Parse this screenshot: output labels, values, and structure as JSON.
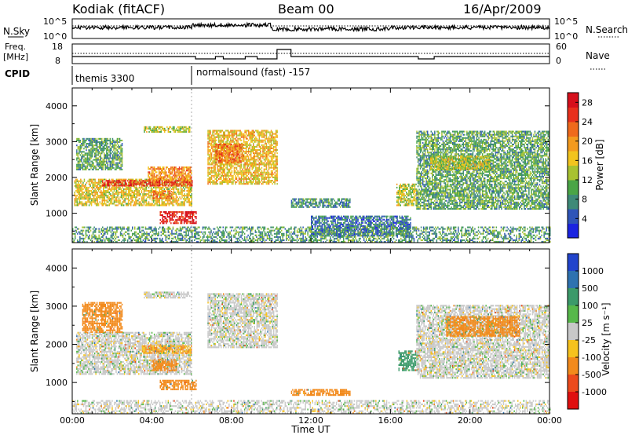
{
  "header": {
    "station": "Kodiak (fitACF)",
    "beam": "Beam 00",
    "date": "16/Apr/2009"
  },
  "top_panels": {
    "nsky_label": "N.Sky",
    "nsky_ticks": [
      "10^5",
      "10^0"
    ],
    "nsearch_label": "N.Search",
    "nsearch_ticks": [
      "10^5",
      "10^0"
    ],
    "freq_label_1": "Freq.",
    "freq_label_2": "[MHz]",
    "freq_ticks": [
      "18",
      "8"
    ],
    "nave_label": "Nave",
    "nave_ticks": [
      "60",
      "0"
    ],
    "cpid_label": "CPID",
    "cpid_segments": [
      {
        "name": "themis 3300",
        "start_hour": 0,
        "end_hour": 6
      },
      {
        "name": "normalsound (fast) -157",
        "start_hour": 6,
        "end_hour": 24
      }
    ]
  },
  "chart_data": [
    {
      "type": "heatmap",
      "parameter": "power",
      "xlabel": "Time UT",
      "ylabel": "Slant Range [km]",
      "xlim": [
        0,
        24
      ],
      "ylim": [
        180,
        4500
      ],
      "y_ticks": [
        "1000",
        "2000",
        "3000",
        "4000"
      ],
      "colorbar": {
        "label": "Power [dB]",
        "ticks": [
          "4",
          "8",
          "12",
          "16",
          "20",
          "24",
          "28"
        ],
        "colors": [
          "#1b24e0",
          "#2f55b8",
          "#3e8a78",
          "#4aa546",
          "#a8c230",
          "#f2c41e",
          "#f39a1e",
          "#ef6a1c",
          "#e8301c",
          "#d6101c"
        ],
        "range": [
          0,
          30
        ]
      },
      "echo_regions": [
        {
          "t0": 0.1,
          "t1": 6.0,
          "r0": 1200,
          "r1": 1950,
          "level": 16
        },
        {
          "t0": 1.5,
          "t1": 6.0,
          "r0": 1750,
          "r1": 1900,
          "level": 26
        },
        {
          "t0": 0.2,
          "t1": 2.5,
          "r0": 2200,
          "r1": 3100,
          "level": 10
        },
        {
          "t0": 3.6,
          "t1": 5.9,
          "r0": 3250,
          "r1": 3400,
          "level": 14
        },
        {
          "t0": 3.8,
          "t1": 6.0,
          "r0": 1900,
          "r1": 2300,
          "level": 20
        },
        {
          "t0": 4.0,
          "t1": 5.0,
          "r0": 1400,
          "r1": 1600,
          "level": 22
        },
        {
          "t0": 4.4,
          "t1": 6.2,
          "r0": 700,
          "r1": 1050,
          "level": 28
        },
        {
          "t0": 6.8,
          "t1": 10.3,
          "r0": 1800,
          "r1": 3300,
          "level": 17
        },
        {
          "t0": 7.2,
          "t1": 8.6,
          "r0": 2400,
          "r1": 2900,
          "level": 22
        },
        {
          "t0": 11.0,
          "t1": 14.0,
          "r0": 1150,
          "r1": 1400,
          "level": 8
        },
        {
          "t0": 12.0,
          "t1": 17.0,
          "r0": 350,
          "r1": 900,
          "level": 6
        },
        {
          "t0": 16.3,
          "t1": 17.3,
          "r0": 1200,
          "r1": 1800,
          "level": 14
        },
        {
          "t0": 17.3,
          "t1": 24.0,
          "r0": 1100,
          "r1": 3300,
          "level": 10
        },
        {
          "t0": 18.0,
          "t1": 21.0,
          "r0": 2200,
          "r1": 2600,
          "level": 14
        },
        {
          "t0": 0.0,
          "t1": 24.0,
          "r0": 180,
          "r1": 600,
          "level": 9
        }
      ]
    },
    {
      "type": "heatmap",
      "parameter": "velocity",
      "xlabel": "Time UT",
      "ylabel": "Slant Range [km]",
      "xlim": [
        0,
        24
      ],
      "ylim": [
        180,
        4500
      ],
      "x_ticks": [
        "00:00",
        "04:00",
        "08:00",
        "12:00",
        "16:00",
        "20:00",
        "00:00"
      ],
      "y_ticks": [
        "1000",
        "2000",
        "3000",
        "4000"
      ],
      "colorbar": {
        "label": "Velocity [m s⁻¹]",
        "ticks": [
          "1000",
          "500",
          "100",
          "25",
          "-25",
          "-100",
          "-500",
          "-1000"
        ],
        "colors": [
          "#2244cc",
          "#2e72b0",
          "#3c9a6a",
          "#57b84a",
          "#c8c8c8",
          "#f6c21e",
          "#f28a1c",
          "#ec4a1c",
          "#e01010"
        ]
      },
      "echo_regions": [
        {
          "t0": 0.2,
          "t1": 6.0,
          "r0": 1200,
          "r1": 2300,
          "v": 0
        },
        {
          "t0": 3.5,
          "t1": 6.0,
          "r0": 1750,
          "r1": 1950,
          "v": -100
        },
        {
          "t0": 0.5,
          "t1": 2.5,
          "r0": 2300,
          "r1": 3100,
          "v": -200
        },
        {
          "t0": 3.6,
          "t1": 5.9,
          "r0": 3200,
          "r1": 3350,
          "v": 0
        },
        {
          "t0": 4.0,
          "t1": 5.2,
          "r0": 1300,
          "r1": 1600,
          "v": -300
        },
        {
          "t0": 4.4,
          "t1": 6.2,
          "r0": 800,
          "r1": 1050,
          "v": -300
        },
        {
          "t0": 6.8,
          "t1": 10.3,
          "r0": 1900,
          "r1": 3300,
          "v": 0
        },
        {
          "t0": 11.0,
          "t1": 14.0,
          "r0": 650,
          "r1": 800,
          "v": -150
        },
        {
          "t0": 16.4,
          "t1": 17.3,
          "r0": 1300,
          "r1": 1800,
          "v": 300
        },
        {
          "t0": 17.3,
          "t1": 24.0,
          "r0": 1100,
          "r1": 3000,
          "v": 0
        },
        {
          "t0": 18.8,
          "t1": 22.5,
          "r0": 2200,
          "r1": 2700,
          "v": -300
        },
        {
          "t0": 0.0,
          "t1": 24.0,
          "r0": 180,
          "r1": 500,
          "v": 0
        }
      ]
    }
  ]
}
